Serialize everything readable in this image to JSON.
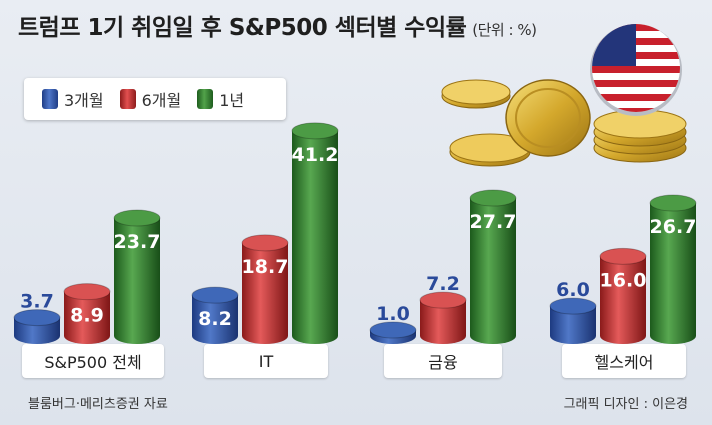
{
  "title": "트럼프 1기 취임일 후 S&P500 섹터별 수익률",
  "unit": "(단위 : %)",
  "source": "블룸버그·메리츠증권 자료",
  "credit": "그래픽 디자인 : 이은경",
  "colors": {
    "3m": "#2e56a8",
    "6m": "#c93a3a",
    "1y": "#3a8a35",
    "label_blue": "#2a4a9a"
  },
  "chart_data": {
    "type": "bar",
    "title": "트럼프 1기 취임일 후 S&P500 섹터별 수익률",
    "unit": "(단위 : %)",
    "categories": [
      "S&P500 전체",
      "IT",
      "금융",
      "헬스케어"
    ],
    "series": [
      {
        "name": "3개월",
        "values": [
          3.7,
          8.2,
          1.0,
          6.0
        ]
      },
      {
        "name": "6개월",
        "values": [
          8.9,
          18.7,
          7.2,
          16.0
        ]
      },
      {
        "name": "1년",
        "values": [
          23.7,
          41.2,
          27.7,
          26.7
        ]
      }
    ],
    "legend_position": "top-left",
    "grid": false
  }
}
